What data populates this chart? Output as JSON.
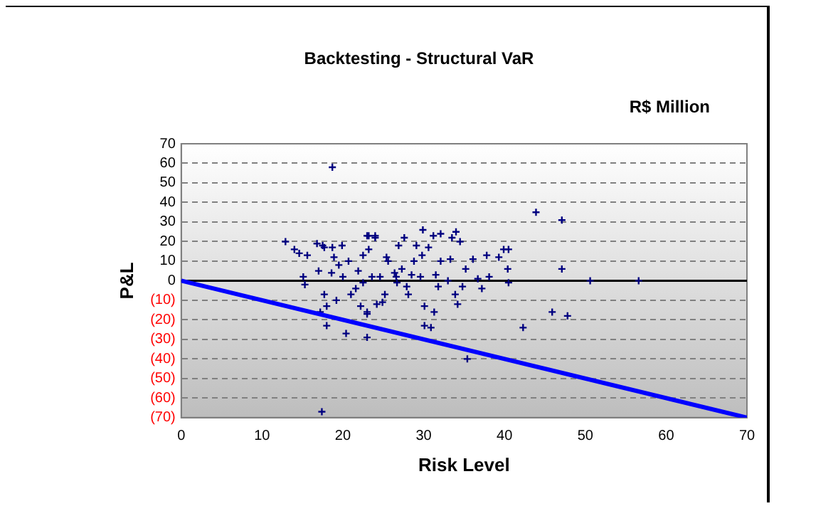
{
  "chart_data": {
    "type": "scatter",
    "title": "Backtesting - Structural VaR",
    "xlabel": "Risk Level",
    "ylabel": "P&L",
    "annotations": [
      "R$ Million"
    ],
    "xlim": [
      0,
      70
    ],
    "xticks": [
      0,
      10,
      20,
      30,
      40,
      50,
      60,
      70
    ],
    "ylim": [
      -70,
      70
    ],
    "yticks": [
      {
        "value": -70,
        "label": "(70)"
      },
      {
        "value": -60,
        "label": "(60)"
      },
      {
        "value": -50,
        "label": "(50)"
      },
      {
        "value": -40,
        "label": "(40)"
      },
      {
        "value": -30,
        "label": "(30)"
      },
      {
        "value": -20,
        "label": "(20)"
      },
      {
        "value": -10,
        "label": "(10)"
      },
      0,
      10,
      20,
      30,
      40,
      50,
      60,
      70
    ],
    "grid": "y",
    "legend": false,
    "marker": "cross",
    "ref_lines": [
      {
        "axis": "y",
        "value": 0,
        "color": "#000000"
      }
    ],
    "series": [
      {
        "color": "#000080",
        "x": [
          18.7,
          17.4,
          12.9,
          14,
          14.6,
          15.6,
          15.1,
          15.3,
          16.8,
          17.5,
          17.7,
          18.7,
          19.9,
          18.9,
          19.5,
          20.7,
          17.7,
          18,
          17.2,
          18,
          20.4,
          19.2,
          21,
          22.5,
          23,
          24,
          23,
          23,
          22.2,
          21.6,
          24.9,
          25.4,
          26.9,
          26.6,
          20,
          18.6,
          17,
          21.9,
          23.6,
          43.9,
          47.1,
          47.1,
          47.8,
          45.9,
          42.3,
          35.4,
          40.5,
          39.9,
          40.4,
          40.5,
          39.3,
          38.1,
          37.8,
          37.2,
          36.1,
          36.7,
          35.2,
          34.2,
          34.5,
          34,
          33.5,
          33.3,
          33,
          32.1,
          31.2,
          32.1,
          31.5,
          31.8,
          31.3,
          30.9,
          30.1,
          30.1,
          29.9,
          30.6,
          29.8,
          29.1,
          28.8,
          28.5,
          28.1,
          27.6,
          27.3,
          26.7,
          26.4,
          25.6,
          25.2,
          24.2,
          24,
          23.2,
          23.2,
          22.5,
          23,
          24.6,
          27.9,
          29.6,
          33.9,
          34.8,
          50.6,
          56.6
        ],
        "values": [
          58,
          -67,
          20,
          16,
          14,
          13,
          2,
          -2,
          19,
          18,
          17,
          17,
          18,
          12,
          8,
          10,
          -7,
          -13,
          -16,
          -23,
          -27,
          -10,
          -7,
          13,
          23,
          23,
          -16,
          -29,
          -13,
          -4,
          -11,
          12,
          18,
          2,
          2,
          4,
          5,
          5,
          2,
          35,
          31,
          6,
          -18,
          -16,
          -24,
          -40,
          16,
          16,
          6,
          -1,
          12,
          2,
          13,
          -4,
          11,
          1,
          6,
          -12,
          20,
          25,
          22,
          11,
          0,
          24,
          23,
          10,
          3,
          -3,
          -16,
          -24,
          -23,
          -13,
          26,
          17,
          13,
          18,
          10,
          3,
          -7,
          22,
          6,
          -1,
          4,
          10,
          -7,
          -12,
          22,
          16,
          23,
          -1,
          -17,
          2,
          -3,
          2,
          -7,
          -3,
          0,
          0
        ]
      },
      {
        "type": "line",
        "color": "#0000ff",
        "marker": "none",
        "x": [
          0,
          70
        ],
        "values": [
          0,
          -70
        ]
      }
    ]
  }
}
